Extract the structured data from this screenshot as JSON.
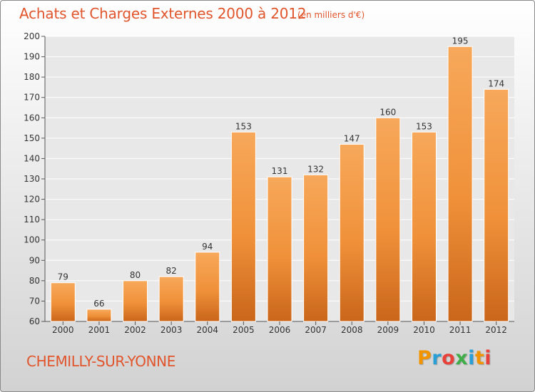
{
  "header": {
    "title": "Achats et Charges Externes 2000 à 2012",
    "subtitle": "(en milliers d'€)"
  },
  "footer": {
    "commune": "CHEMILLY-SUR-YONNE",
    "logo_text": "Proxiti",
    "logo_letters": [
      "P",
      "r",
      "o",
      "x",
      "i",
      "t",
      "i"
    ],
    "logo_colors": [
      "#f29400",
      "#2a9fd6",
      "#e8413a",
      "#3fae49",
      "#2a9fd6",
      "#f29400",
      "#e8413a"
    ]
  },
  "chart_data": {
    "type": "bar",
    "title": "Achats et Charges Externes 2000 à 2012",
    "subtitle": "(en milliers d'€)",
    "categories": [
      "2000",
      "2001",
      "2002",
      "2003",
      "2004",
      "2005",
      "2006",
      "2007",
      "2008",
      "2009",
      "2010",
      "2011",
      "2012"
    ],
    "values": [
      79,
      66,
      80,
      82,
      94,
      153,
      131,
      132,
      147,
      160,
      153,
      195,
      174
    ],
    "ylim": [
      60,
      200
    ],
    "yticks": [
      60,
      70,
      80,
      90,
      100,
      110,
      120,
      130,
      140,
      150,
      160,
      170,
      180,
      190,
      200
    ],
    "grid": true,
    "data_labels": true,
    "bar_color": "#f0913a",
    "bar_color_light": "#f7a85a",
    "bar_color_dark": "#c9661a"
  }
}
